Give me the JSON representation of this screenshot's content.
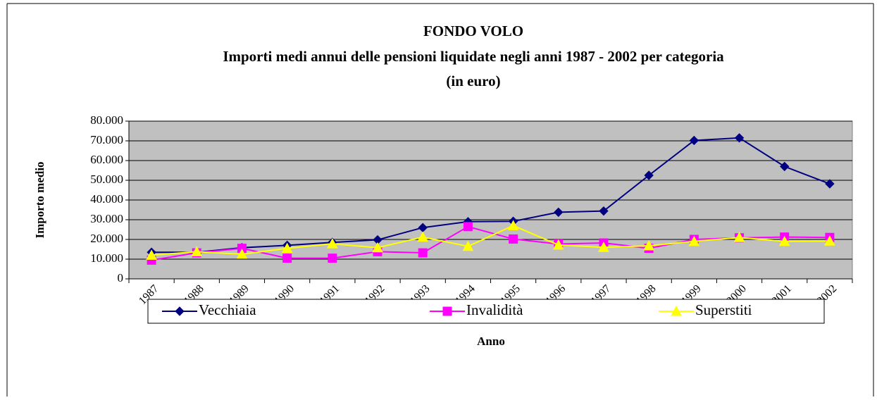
{
  "chart_data": {
    "type": "line",
    "title": [
      "FONDO VOLO",
      "Importi medi annui delle pensioni liquidate negli anni 1987 - 2002 per categoria",
      "(in euro)"
    ],
    "x_label": "Anno",
    "y_label": "Importo medio",
    "categories": [
      "1987",
      "1988",
      "1989",
      "1990",
      "1991",
      "1992",
      "1993",
      "1994",
      "1995",
      "1996",
      "1997",
      "1998",
      "1999",
      "2000",
      "2001",
      "2002"
    ],
    "series": [
      {
        "name": "Vecchiaia",
        "color": "#000080",
        "marker": "diamond",
        "values": [
          13500,
          13500,
          15800,
          17000,
          18500,
          19800,
          26000,
          29000,
          29200,
          33800,
          34400,
          52500,
          70200,
          71500,
          57000,
          48200
        ]
      },
      {
        "name": "Invalidità",
        "color": "#ff00ff",
        "marker": "square",
        "values": [
          9500,
          13200,
          15500,
          10500,
          10500,
          13800,
          13200,
          26500,
          20200,
          17700,
          18200,
          15500,
          20000,
          20800,
          21200,
          21000
        ]
      },
      {
        "name": "Superstiti",
        "color": "#ffff00",
        "marker": "triangle",
        "values": [
          12000,
          13800,
          12500,
          15500,
          17800,
          15800,
          21200,
          16500,
          27000,
          17200,
          16000,
          16800,
          19000,
          21000,
          19000,
          19200
        ]
      }
    ],
    "ylim": [
      0,
      80000
    ],
    "yticks": [
      0,
      {
        "value": 10000,
        "label": "10.000"
      },
      {
        "value": 20000,
        "label": "20.000"
      },
      {
        "value": 30000,
        "label": "30.000"
      },
      {
        "value": 40000,
        "label": "40.000"
      },
      {
        "value": 50000,
        "label": "50.000"
      },
      {
        "value": 60000,
        "label": "60.000"
      },
      {
        "value": 70000,
        "label": "70.000"
      },
      {
        "value": 80000,
        "label": "80.000"
      }
    ],
    "grid": true,
    "legend": "bottom",
    "plot_background": "#c0c0c0"
  }
}
